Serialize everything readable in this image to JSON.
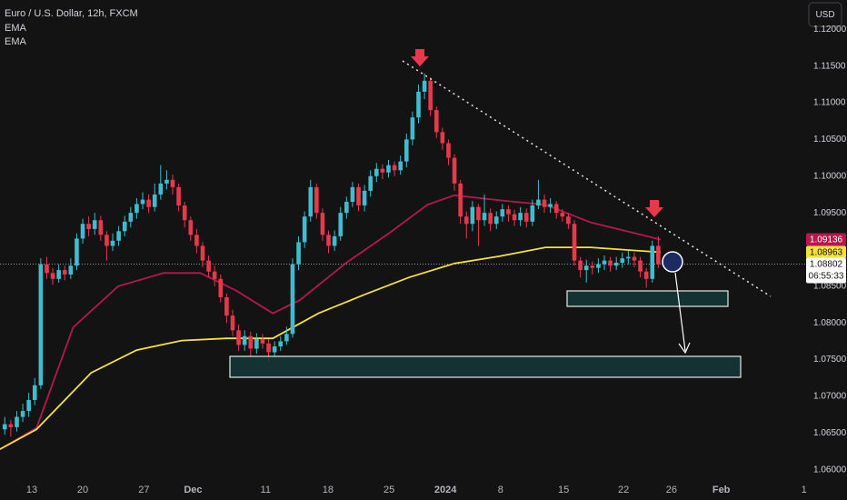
{
  "chart_data": {
    "type": "candlestick",
    "title": "Euro / U.S. Dollar, 12h, FXCM",
    "currency": "USD",
    "countdown": "06:55:33",
    "up_color": "#3fbcd0",
    "down_color": "#e8394c",
    "open": [
      1.0655,
      1.0662,
      1.0658,
      1.0672,
      1.068,
      1.0695,
      1.0715,
      1.088,
      1.0868,
      1.086,
      1.0872,
      1.0866,
      1.0878,
      1.0915,
      1.0935,
      1.0928,
      1.094,
      1.092,
      1.0905,
      1.0912,
      1.0925,
      1.0938,
      1.095,
      1.0962,
      1.0968,
      1.0958,
      1.0975,
      1.099,
      1.0995,
      1.0985,
      1.096,
      1.094,
      1.092,
      1.0905,
      1.0885,
      1.087,
      1.086,
      1.0835,
      1.081,
      1.079,
      1.077,
      1.0782,
      1.0765,
      1.0778,
      1.0772,
      1.076,
      1.0768,
      1.0775,
      1.0785,
      1.088,
      1.091,
      1.0945,
      1.0985,
      1.095,
      1.092,
      1.0905,
      1.0918,
      1.095,
      1.0965,
      1.0985,
      1.096,
      1.098,
      1.1,
      1.101,
      1.1005,
      1.1015,
      1.1008,
      1.102,
      1.105,
      1.108,
      1.1115,
      1.113,
      1.109,
      1.106,
      1.1045,
      1.1025,
      1.099,
      1.0945,
      1.0935,
      1.0958,
      1.094,
      1.095,
      1.0935,
      1.0945,
      1.0955,
      1.0948,
      1.094,
      1.095,
      1.0938,
      1.096,
      1.0968,
      1.0958,
      1.0962,
      1.095,
      1.0945,
      1.0935,
      1.0885,
      1.0872,
      1.0878,
      1.0875,
      1.088,
      1.0885,
      1.0878,
      1.0882,
      1.0888,
      1.089,
      1.0885,
      1.087,
      1.086,
      1.0905
    ],
    "high": [
      1.0672,
      1.0668,
      1.068,
      1.069,
      1.0705,
      1.0725,
      1.0888,
      1.089,
      1.0875,
      1.088,
      1.0878,
      1.0888,
      1.0922,
      1.0942,
      1.0945,
      1.095,
      1.0946,
      1.0925,
      1.0922,
      1.0932,
      1.0946,
      1.0958,
      1.097,
      1.0978,
      1.0975,
      1.099,
      1.1015,
      1.1008,
      1.1002,
      1.099,
      1.0965,
      1.0945,
      1.0928,
      1.091,
      1.0892,
      1.0878,
      1.0866,
      1.084,
      1.0818,
      1.0798,
      1.079,
      1.0788,
      1.0786,
      1.0785,
      1.0778,
      1.0775,
      1.0782,
      1.0795,
      1.0888,
      1.0918,
      1.0952,
      1.0995,
      1.099,
      1.0956,
      1.0926,
      1.0926,
      1.0958,
      1.0972,
      1.0992,
      1.099,
      1.0988,
      1.1008,
      1.1018,
      1.1016,
      1.1022,
      1.102,
      1.1028,
      1.1058,
      1.1088,
      1.1125,
      1.114,
      1.1135,
      1.1095,
      1.1066,
      1.105,
      1.103,
      1.0995,
      1.0952,
      1.0966,
      1.0962,
      1.0975,
      1.0956,
      1.0952,
      1.0962,
      1.096,
      1.0954,
      1.0958,
      1.0956,
      1.0968,
      1.0995,
      1.0975,
      1.097,
      1.0966,
      1.0955,
      1.095,
      1.094,
      1.089,
      1.0886,
      1.0884,
      1.0888,
      1.0892,
      1.089,
      1.089,
      1.0896,
      1.0898,
      1.0896,
      1.089,
      1.0875,
      1.0912,
      1.0918
    ],
    "low": [
      1.0648,
      1.0645,
      1.0652,
      1.0665,
      1.0672,
      1.0688,
      1.071,
      1.086,
      1.0852,
      1.0855,
      1.0858,
      1.086,
      1.0872,
      1.0908,
      1.0918,
      1.092,
      1.0912,
      1.0885,
      1.0898,
      1.0905,
      1.0918,
      1.093,
      1.0942,
      1.0955,
      1.095,
      1.0952,
      1.0968,
      1.0982,
      1.0975,
      1.0952,
      1.093,
      1.0912,
      1.0895,
      1.0876,
      1.0862,
      1.085,
      1.0828,
      1.08,
      1.0782,
      1.0762,
      1.0762,
      1.0755,
      1.0758,
      1.0765,
      1.0748,
      1.0752,
      1.0762,
      1.077,
      1.078,
      1.0872,
      1.0902,
      1.0938,
      1.0942,
      1.0912,
      1.0895,
      1.0898,
      1.0912,
      1.0942,
      1.0958,
      1.0952,
      1.0952,
      1.0972,
      1.0992,
      1.0996,
      1.0998,
      1.1,
      1.1002,
      1.1012,
      1.1042,
      1.1072,
      1.1105,
      1.1082,
      1.1052,
      1.1036,
      1.1015,
      1.098,
      1.0935,
      1.0915,
      1.0925,
      1.0905,
      1.0932,
      1.0925,
      1.0928,
      1.0938,
      1.0938,
      1.0932,
      1.0932,
      1.093,
      1.0932,
      1.0955,
      1.095,
      1.095,
      1.0942,
      1.0938,
      1.0928,
      1.0878,
      1.0862,
      1.0855,
      1.0866,
      1.0868,
      1.0872,
      1.087,
      1.0872,
      1.0875,
      1.088,
      1.0876,
      1.0862,
      1.0848,
      1.0855,
      1.0875
    ],
    "close": [
      1.0662,
      1.0658,
      1.0672,
      1.068,
      1.0695,
      1.0715,
      1.088,
      1.0868,
      1.086,
      1.0872,
      1.0866,
      1.0878,
      1.0915,
      1.0935,
      1.0928,
      1.094,
      1.092,
      1.0905,
      1.0912,
      1.0925,
      1.0938,
      1.095,
      1.0962,
      1.0968,
      1.0958,
      1.0975,
      1.099,
      1.0995,
      1.0985,
      1.096,
      1.094,
      1.092,
      1.0905,
      1.0885,
      1.087,
      1.086,
      1.0835,
      1.081,
      1.079,
      1.077,
      1.0782,
      1.0765,
      1.0778,
      1.0772,
      1.076,
      1.0768,
      1.0775,
      1.0785,
      1.088,
      1.091,
      1.0945,
      1.0985,
      1.095,
      1.092,
      1.0905,
      1.0918,
      1.095,
      1.0965,
      1.0985,
      1.096,
      1.098,
      1.1,
      1.101,
      1.1005,
      1.1015,
      1.1008,
      1.102,
      1.105,
      1.108,
      1.1115,
      1.113,
      1.109,
      1.106,
      1.1045,
      1.1025,
      1.099,
      1.0945,
      1.0935,
      1.0958,
      1.094,
      1.095,
      1.0935,
      1.0945,
      1.0955,
      1.0948,
      1.094,
      1.095,
      1.0938,
      1.096,
      1.0968,
      1.0958,
      1.0962,
      1.095,
      1.0945,
      1.0935,
      1.0885,
      1.0872,
      1.0878,
      1.0875,
      1.088,
      1.0885,
      1.0878,
      1.0882,
      1.0888,
      1.089,
      1.0885,
      1.087,
      1.086,
      1.0905,
      1.08802
    ],
    "overlays": [
      {
        "name": "EMA",
        "color": "#b5174f",
        "x": [
          -0.8,
          5.3,
          11.4,
          18.9,
          26.5,
          32.6,
          38.6,
          44.7,
          49.2,
          56.8,
          64.4,
          70.5,
          75,
          82.6,
          90.2,
          97.7,
          109.4
        ],
        "values": [
          1.0628,
          1.0657,
          1.0794,
          1.085,
          1.0868,
          1.0868,
          1.0844,
          1.0813,
          1.0831,
          1.0881,
          1.0924,
          1.0961,
          1.0974,
          1.0967,
          1.0961,
          1.0937,
          1.09136
        ]
      },
      {
        "name": "EMA",
        "color": "#f2e23a",
        "x": [
          -0.8,
          5.3,
          14.4,
          22,
          29.5,
          37,
          44.7,
          52.3,
          59.8,
          67.4,
          75,
          82.6,
          90.2,
          97.7,
          109.4
        ],
        "values": [
          1.0628,
          1.0655,
          1.0732,
          1.0763,
          1.0776,
          1.0779,
          1.0779,
          1.0813,
          1.0838,
          1.0862,
          1.0881,
          1.0891,
          1.0903,
          1.0903,
          1.08963
        ]
      }
    ],
    "xlim": [
      -0.8,
      133.5
    ],
    "ylim": [
      1.0586,
      1.124
    ],
    "xticks": [
      {
        "value": 4.5,
        "label": "13"
      },
      {
        "value": 13,
        "label": "20"
      },
      {
        "value": 23.2,
        "label": "27"
      },
      {
        "value": 31.4,
        "label": "Dec"
      },
      {
        "value": 43.5,
        "label": "11"
      },
      {
        "value": 53.9,
        "label": "18"
      },
      {
        "value": 64.1,
        "label": "25"
      },
      {
        "value": 73.5,
        "label": "2024"
      },
      {
        "value": 82.7,
        "label": "8"
      },
      {
        "value": 93.2,
        "label": "15"
      },
      {
        "value": 103.2,
        "label": "22"
      },
      {
        "value": 111.2,
        "label": "26"
      },
      {
        "value": 119.5,
        "label": "Feb"
      },
      {
        "value": 133.3,
        "label": "1"
      }
    ],
    "yticks": [
      {
        "value": 1.12,
        "label": "1.12000"
      },
      {
        "value": 1.115,
        "label": "1.11500"
      },
      {
        "value": 1.11,
        "label": "1.11000"
      },
      {
        "value": 1.105,
        "label": "1.10500"
      },
      {
        "value": 1.1,
        "label": "1.10000"
      },
      {
        "value": 1.095,
        "label": "1.09500"
      },
      {
        "value": 1.09,
        "label": "1.09000"
      },
      {
        "value": 1.085,
        "label": "1.08500"
      },
      {
        "value": 1.08,
        "label": "1.08000"
      },
      {
        "value": 1.075,
        "label": "1.07500"
      },
      {
        "value": 1.07,
        "label": "1.07000"
      },
      {
        "value": 1.065,
        "label": "1.06500"
      },
      {
        "value": 1.06,
        "label": "1.06000"
      }
    ],
    "grid": false
  }
}
